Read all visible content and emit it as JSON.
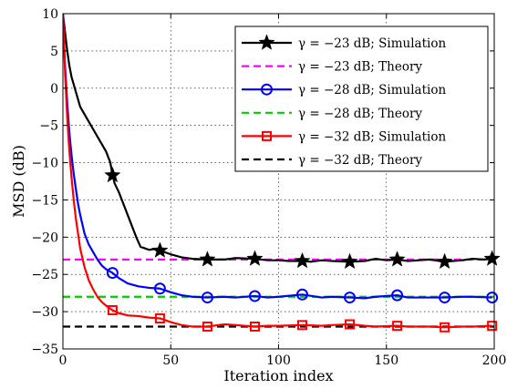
{
  "chart_data": {
    "type": "line",
    "xlabel": "Iteration index",
    "ylabel": "MSD (dB)",
    "xlim": [
      0,
      200
    ],
    "ylim": [
      -35,
      10
    ],
    "x_ticks": [
      0,
      50,
      100,
      150,
      200
    ],
    "y_ticks": [
      10,
      5,
      0,
      -5,
      -10,
      -15,
      -20,
      -25,
      -30,
      -35
    ],
    "grid": true,
    "legend_position": "top-right",
    "series": [
      {
        "name": "γ = −23 dB; Simulation",
        "color": "#000000",
        "style": "solid",
        "marker": "star",
        "x": [
          0,
          1,
          2,
          3,
          4,
          5,
          6,
          7,
          8,
          10,
          12,
          14,
          16,
          18,
          20,
          22,
          23,
          24,
          26,
          28,
          30,
          32,
          34,
          36,
          38,
          40,
          42,
          45,
          50,
          55,
          60,
          67,
          75,
          80,
          89,
          95,
          100,
          105,
          111,
          115,
          120,
          125,
          133,
          140,
          145,
          150,
          155,
          160,
          165,
          170,
          177,
          185,
          190,
          195,
          199
        ],
        "y": [
          10,
          7.5,
          5,
          3,
          1.5,
          0.5,
          -0.5,
          -1.5,
          -2.5,
          -3.5,
          -4.5,
          -5.5,
          -6.5,
          -7.5,
          -8.5,
          -10,
          -11.7,
          -12.8,
          -14,
          -15.5,
          -17,
          -18.5,
          -20,
          -21.3,
          -21.5,
          -21.7,
          -21.6,
          -21.8,
          -22.3,
          -22.7,
          -22.9,
          -23,
          -23,
          -22.8,
          -22.9,
          -23.1,
          -23.1,
          -23.2,
          -23.2,
          -23.3,
          -23.1,
          -23.2,
          -23.3,
          -23.2,
          -22.9,
          -23.1,
          -23,
          -23.2,
          -23.1,
          -23,
          -23.3,
          -23.1,
          -22.9,
          -23,
          -22.9
        ],
        "marker_x": [
          23,
          45,
          67,
          89,
          111,
          133,
          155,
          177,
          199
        ]
      },
      {
        "name": "γ = −23 dB; Theory",
        "color": "#ff00ff",
        "style": "dashed",
        "x": [
          0,
          200
        ],
        "y": [
          -23,
          -23
        ]
      },
      {
        "name": "γ = −28 dB; Simulation",
        "color": "#0000ff",
        "style": "solid",
        "marker": "circle",
        "x": [
          0,
          1,
          2,
          3,
          4,
          5,
          6,
          7,
          8,
          10,
          12,
          14,
          16,
          18,
          20,
          23,
          26,
          30,
          35,
          40,
          45,
          50,
          55,
          60,
          67,
          75,
          80,
          89,
          95,
          100,
          111,
          120,
          125,
          133,
          140,
          145,
          155,
          160,
          170,
          177,
          185,
          190,
          199
        ],
        "y": [
          10,
          3,
          -2,
          -6,
          -9,
          -11.5,
          -13.5,
          -15.5,
          -17,
          -19.5,
          -21,
          -22,
          -23,
          -23.8,
          -24.3,
          -24.8,
          -25.5,
          -26.2,
          -26.6,
          -26.8,
          -26.9,
          -27.4,
          -27.8,
          -28,
          -28.1,
          -28,
          -28.1,
          -27.9,
          -28.1,
          -28,
          -27.7,
          -28.1,
          -28,
          -28.1,
          -28.2,
          -28,
          -27.8,
          -28.1,
          -28.1,
          -28.1,
          -28,
          -28,
          -28.1
        ],
        "marker_x": [
          23,
          45,
          67,
          89,
          111,
          133,
          155,
          177,
          199
        ]
      },
      {
        "name": "γ = −28 dB; Theory",
        "color": "#00cc00",
        "style": "dashed",
        "x": [
          0,
          200
        ],
        "y": [
          -28,
          -28
        ]
      },
      {
        "name": "γ = −32 dB; Simulation",
        "color": "#ff0000",
        "style": "solid",
        "marker": "square",
        "x": [
          0,
          1,
          2,
          3,
          4,
          5,
          6,
          7,
          8,
          10,
          12,
          14,
          16,
          18,
          20,
          23,
          26,
          30,
          35,
          40,
          45,
          50,
          55,
          60,
          67,
          75,
          80,
          89,
          95,
          100,
          111,
          120,
          125,
          133,
          140,
          145,
          155,
          160,
          170,
          177,
          185,
          190,
          199
        ],
        "y": [
          10,
          2,
          -4,
          -8.5,
          -12,
          -15,
          -17.5,
          -19.5,
          -21.5,
          -24,
          -25.8,
          -27,
          -28,
          -28.7,
          -29.2,
          -29.8,
          -30.2,
          -30.5,
          -30.6,
          -30.8,
          -30.9,
          -31.4,
          -31.8,
          -32,
          -32,
          -31.7,
          -31.8,
          -32,
          -31.9,
          -31.9,
          -31.8,
          -31.9,
          -31.8,
          -31.7,
          -31.9,
          -32,
          -31.9,
          -32,
          -32,
          -32.1,
          -32,
          -32,
          -31.9
        ],
        "marker_x": [
          23,
          45,
          67,
          89,
          111,
          133,
          155,
          177,
          199
        ]
      },
      {
        "name": "γ = −32 dB; Theory",
        "color": "#000000",
        "style": "dashed",
        "x": [
          0,
          200
        ],
        "y": [
          -32,
          -32
        ]
      }
    ]
  }
}
